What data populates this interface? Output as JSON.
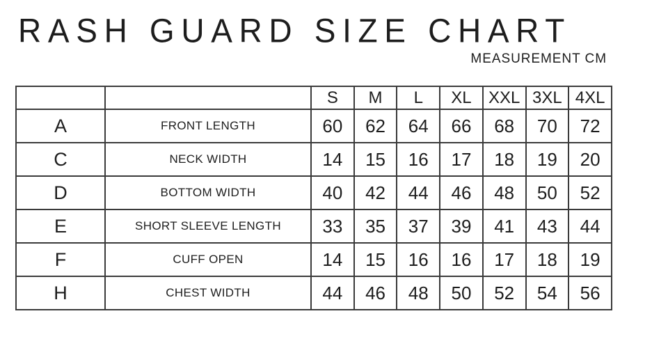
{
  "header": {
    "title": "RASH GUARD SIZE CHART",
    "subtitle": "MEASUREMENT CM"
  },
  "chart_data": {
    "type": "table",
    "title": "RASH GUARD SIZE CHART",
    "subtitle": "MEASUREMENT CM",
    "unit": "CM",
    "size_headers": [
      "S",
      "M",
      "L",
      "XL",
      "XXL",
      "3XL",
      "4XL"
    ],
    "rows": [
      {
        "letter": "A",
        "name": "FRONT LENGTH",
        "values": [
          60,
          62,
          64,
          66,
          68,
          70,
          72
        ]
      },
      {
        "letter": "C",
        "name": "NECK WIDTH",
        "values": [
          14,
          15,
          16,
          17,
          18,
          19,
          20
        ]
      },
      {
        "letter": "D",
        "name": "BOTTOM WIDTH",
        "values": [
          40,
          42,
          44,
          46,
          48,
          50,
          52
        ]
      },
      {
        "letter": "E",
        "name": "SHORT SLEEVE LENGTH",
        "values": [
          33,
          35,
          37,
          39,
          41,
          43,
          44
        ]
      },
      {
        "letter": "F",
        "name": "CUFF OPEN",
        "values": [
          14,
          15,
          16,
          16,
          17,
          18,
          19
        ]
      },
      {
        "letter": "H",
        "name": "CHEST WIDTH",
        "values": [
          44,
          46,
          48,
          50,
          52,
          54,
          56
        ]
      }
    ]
  },
  "colors": {
    "text": "#1d1d1d",
    "border": "#3a3a3a",
    "background": "#ffffff"
  }
}
